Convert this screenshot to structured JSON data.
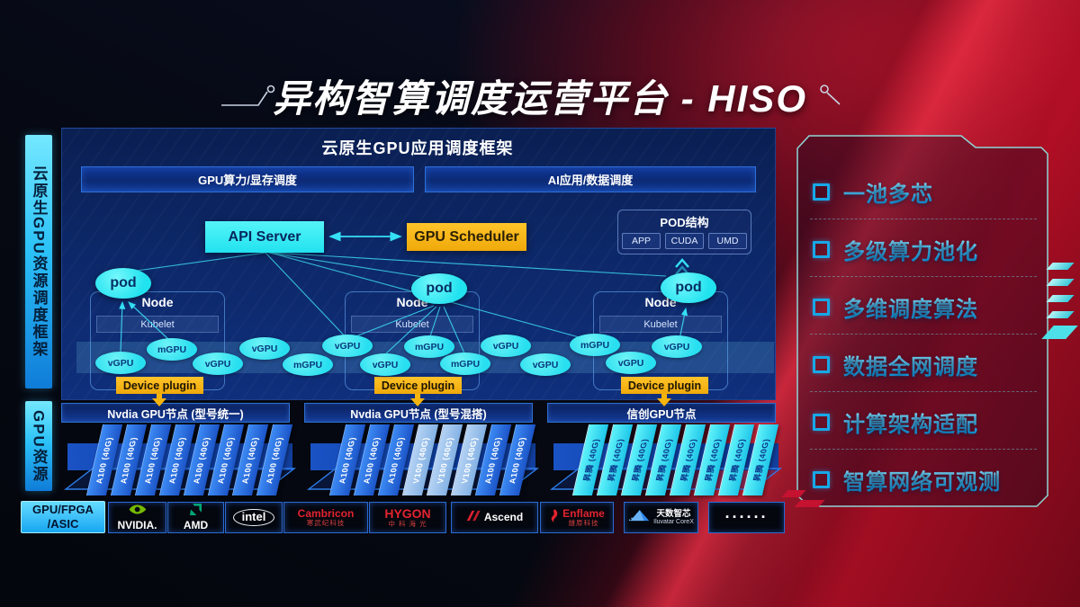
{
  "title": {
    "text": "异构智算调度运营平台 - HISO"
  },
  "sidebar": {
    "framework_label": "云原生GPU资源调度框架",
    "resource_label": "GPU资源",
    "chip_line1": "GPU/FPGA",
    "chip_line2": "/ASIC"
  },
  "framework": {
    "title": "云原生GPU应用调度框架",
    "left_button": "GPU算力/显存调度",
    "right_button": "AI应用/数据调度"
  },
  "diagram": {
    "api_server": "API Server",
    "gpu_scheduler": "GPU Scheduler",
    "pod_structure": {
      "title": "POD结构",
      "cells": [
        "APP",
        "CUDA",
        "UMD"
      ]
    },
    "pod": "pod",
    "node": "Node",
    "kubelet": "Kubelet",
    "device_plugin": "Device plugin",
    "gpu_pool": [
      "vGPU",
      "mGPU",
      "vGPU",
      "vGPU",
      "mGPU",
      "vGPU",
      "vGPU",
      "mGPU",
      "mGPU",
      "vGPU",
      "vGPU",
      "mGPU",
      "vGPU",
      "vGPU"
    ]
  },
  "gpu_nodes": [
    {
      "header": "Nvdia GPU节点 (型号统一)",
      "cards": [
        "A100 (40G)",
        "A100 (40G)",
        "A100 (40G)",
        "A100 (40G)",
        "A100 (40G)",
        "A100 (40G)",
        "A100 (40G)",
        "A100 (40G)"
      ]
    },
    {
      "header": "Nvdia GPU节点 (型号混搭)",
      "cards": [
        "A100 (40G)",
        "A100 (40G)",
        "A100 (40G)",
        "V100 (40G)",
        "V100 (40G)",
        "V100 (40G)",
        "A100 (40G)",
        "A100 (40G)"
      ]
    },
    {
      "header": "信创GPU节点",
      "cards": [
        "昇腾 (40G)",
        "昇腾 (40G)",
        "昇腾 (40G)",
        "昇腾 (40G)",
        "昇腾 (40G)",
        "昇腾 (40G)",
        "昇腾 (40G)",
        "昇腾 (40G)"
      ]
    }
  ],
  "vendors": [
    {
      "name": "NVIDIA.",
      "icon": "nvidia-logo-icon"
    },
    {
      "name": "AMD",
      "icon": "amd-logo-icon"
    },
    {
      "name": "intel",
      "icon": "intel-oval-icon"
    },
    {
      "name": "Cambricon",
      "sub": "寒武纪科技"
    },
    {
      "name": "HYGON",
      "sub": "中 科 海 光"
    },
    {
      "name": "Ascend",
      "icon": "ascend-logo-icon"
    },
    {
      "name": "Enflame",
      "sub": "燧原科技",
      "icon": "enflame-flame-icon"
    },
    {
      "name": "天数智芯",
      "sub": "Iluvatar CoreX",
      "icon": "iluvatar-triangle-icon"
    },
    {
      "name": "······",
      "icon": "ellipsis-dots-icon"
    }
  ],
  "features": [
    "一池多芯",
    "多级算力池化",
    "多维调度算法",
    "数据全网调度",
    "计算架构适配",
    "智算网络可观测"
  ],
  "colors": {
    "cyan": "#35e6f5",
    "yellow": "#f6b40e",
    "panel_blue": "#0d2a6e",
    "accent_red": "#c41230",
    "feature_text": "#29c3f7",
    "nvidia_green": "#76b900"
  }
}
